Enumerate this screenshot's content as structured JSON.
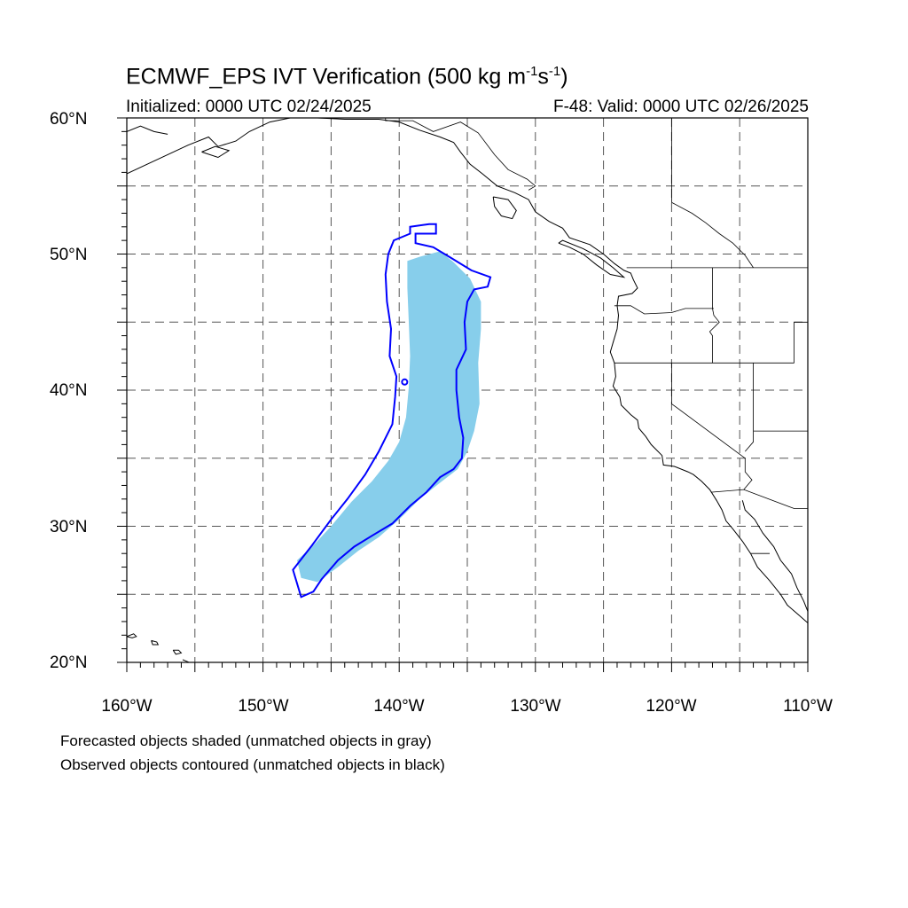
{
  "title": {
    "prefix": "ECMWF_EPS IVT Verification (500 kg m",
    "exp1": "-1",
    "mid": "s",
    "exp2": "-1",
    "suffix": ")"
  },
  "initialized": "Initialized: 0000 UTC 02/24/2025",
  "valid": "F-48: Valid: 0000 UTC 02/26/2025",
  "lat_labels": [
    "60°N",
    "50°N",
    "40°N",
    "30°N",
    "20°N"
  ],
  "lon_labels": [
    "160°W",
    "150°W",
    "140°W",
    "130°W",
    "120°W",
    "110°W"
  ],
  "footnotes": [
    "Forecasted objects shaded (unmatched objects in gray)",
    "Observed objects contoured (unmatched objects in black)"
  ],
  "map": {
    "lon_range": [
      -160,
      -110
    ],
    "lat_range": [
      20,
      60
    ],
    "grid_step_deg": 5,
    "colors": {
      "forecast_fill": "#87ceeb",
      "observed_contour": "#0000ff",
      "coastline": "#000000",
      "grid": "#555555"
    },
    "forecast_object": [
      [
        -138.5,
        49.8
      ],
      [
        -137.0,
        50.2
      ],
      [
        -136.0,
        49.4
      ],
      [
        -134.8,
        48.2
      ],
      [
        -134.0,
        46.5
      ],
      [
        -134.0,
        44.5
      ],
      [
        -134.2,
        42.0
      ],
      [
        -134.1,
        39.0
      ],
      [
        -134.5,
        37.0
      ],
      [
        -135.0,
        35.5
      ],
      [
        -135.7,
        34.2
      ],
      [
        -137.0,
        33.2
      ],
      [
        -138.5,
        32.0
      ],
      [
        -140.0,
        30.5
      ],
      [
        -141.5,
        29.2
      ],
      [
        -143.0,
        28.2
      ],
      [
        -144.5,
        27.0
      ],
      [
        -146.0,
        25.9
      ],
      [
        -147.2,
        26.2
      ],
      [
        -147.5,
        27.5
      ],
      [
        -146.3,
        28.6
      ],
      [
        -145.0,
        30.0
      ],
      [
        -143.5,
        31.8
      ],
      [
        -142.0,
        33.3
      ],
      [
        -140.8,
        34.8
      ],
      [
        -140.0,
        36.2
      ],
      [
        -139.5,
        38.0
      ],
      [
        -139.3,
        40.2
      ],
      [
        -139.2,
        42.5
      ],
      [
        -139.3,
        45.0
      ],
      [
        -139.4,
        47.5
      ],
      [
        -139.4,
        49.5
      ]
    ],
    "observed_object": [
      [
        -137.8,
        52.2
      ],
      [
        -137.3,
        52.2
      ],
      [
        -137.3,
        51.5
      ],
      [
        -138.8,
        51.5
      ],
      [
        -138.8,
        50.8
      ],
      [
        -137.5,
        50.5
      ],
      [
        -136.0,
        49.6
      ],
      [
        -134.7,
        48.8
      ],
      [
        -133.3,
        48.3
      ],
      [
        -133.5,
        47.6
      ],
      [
        -134.5,
        47.4
      ],
      [
        -135.0,
        46.5
      ],
      [
        -135.2,
        45.0
      ],
      [
        -135.1,
        43.0
      ],
      [
        -135.8,
        41.5
      ],
      [
        -135.8,
        40.0
      ],
      [
        -135.6,
        38.0
      ],
      [
        -135.3,
        36.5
      ],
      [
        -135.4,
        35.0
      ],
      [
        -136.0,
        34.2
      ],
      [
        -137.0,
        33.6
      ],
      [
        -138.0,
        32.5
      ],
      [
        -139.2,
        31.5
      ],
      [
        -140.5,
        30.2
      ],
      [
        -142.0,
        29.3
      ],
      [
        -143.3,
        28.5
      ],
      [
        -144.5,
        27.5
      ],
      [
        -145.7,
        26.1
      ],
      [
        -146.3,
        25.2
      ],
      [
        -147.2,
        24.8
      ],
      [
        -147.8,
        26.8
      ],
      [
        -146.4,
        28.6
      ],
      [
        -145.0,
        30.5
      ],
      [
        -143.8,
        32.0
      ],
      [
        -142.5,
        33.8
      ],
      [
        -141.5,
        35.5
      ],
      [
        -140.5,
        37.5
      ],
      [
        -140.3,
        39.5
      ],
      [
        -140.2,
        41.0
      ],
      [
        -140.7,
        42.5
      ],
      [
        -140.6,
        44.5
      ],
      [
        -140.9,
        46.5
      ],
      [
        -141.0,
        48.5
      ],
      [
        -140.8,
        50.0
      ],
      [
        -140.4,
        51.0
      ],
      [
        -139.2,
        51.5
      ],
      [
        -139.2,
        52.0
      ]
    ],
    "observed_dot": [
      -139.6,
      40.6
    ],
    "coastlines": [
      [
        [
          -153.3,
          57.9
        ],
        [
          -152.0,
          58.3
        ],
        [
          -151.0,
          59.0
        ],
        [
          -149.5,
          59.7
        ],
        [
          -148.0,
          60.0
        ]
      ],
      [
        [
          -146.0,
          60.0
        ],
        [
          -144.0,
          59.9
        ],
        [
          -141.5,
          59.9
        ],
        [
          -140.0,
          59.7
        ],
        [
          -138.5,
          59.1
        ],
        [
          -137.0,
          58.6
        ],
        [
          -136.0,
          58.2
        ],
        [
          -135.5,
          57.5
        ],
        [
          -134.8,
          56.6
        ],
        [
          -133.9,
          55.9
        ],
        [
          -132.8,
          55.0
        ],
        [
          -131.5,
          54.5
        ],
        [
          -130.5,
          54.0
        ],
        [
          -130.0,
          53.1
        ],
        [
          -129.0,
          52.4
        ],
        [
          -128.0,
          51.9
        ],
        [
          -127.5,
          51.2
        ],
        [
          -126.0,
          50.7
        ],
        [
          -125.0,
          50.0
        ],
        [
          -124.2,
          49.3
        ],
        [
          -123.5,
          48.8
        ],
        [
          -123.0,
          48.6
        ],
        [
          -122.8,
          48.1
        ],
        [
          -122.5,
          47.5
        ],
        [
          -122.9,
          47.1
        ],
        [
          -123.9,
          46.9
        ],
        [
          -124.0,
          46.2
        ],
        [
          -123.9,
          45.5
        ],
        [
          -124.0,
          44.5
        ],
        [
          -124.3,
          43.5
        ],
        [
          -124.5,
          42.8
        ],
        [
          -124.2,
          42.0
        ],
        [
          -124.1,
          41.0
        ],
        [
          -124.3,
          40.3
        ],
        [
          -123.8,
          39.5
        ],
        [
          -123.7,
          38.9
        ],
        [
          -123.0,
          38.2
        ],
        [
          -122.5,
          37.8
        ],
        [
          -122.4,
          37.2
        ],
        [
          -121.9,
          36.6
        ],
        [
          -121.5,
          36.0
        ],
        [
          -120.7,
          35.2
        ],
        [
          -120.6,
          34.5
        ],
        [
          -119.8,
          34.4
        ],
        [
          -118.8,
          34.0
        ],
        [
          -118.4,
          33.8
        ],
        [
          -117.8,
          33.3
        ],
        [
          -117.2,
          32.7
        ],
        [
          -116.7,
          31.9
        ],
        [
          -116.3,
          31.2
        ],
        [
          -116.0,
          30.4
        ],
        [
          -115.5,
          29.8
        ],
        [
          -114.8,
          28.9
        ],
        [
          -114.2,
          28.0
        ],
        [
          -113.7,
          27.0
        ],
        [
          -112.8,
          26.0
        ],
        [
          -112.0,
          25.0
        ],
        [
          -111.5,
          24.2
        ],
        [
          -110.8,
          23.6
        ],
        [
          -110.0,
          22.9
        ]
      ],
      [
        [
          -128.3,
          50.8
        ],
        [
          -127.5,
          50.5
        ],
        [
          -126.5,
          50.0
        ],
        [
          -125.5,
          49.2
        ],
        [
          -124.5,
          48.5
        ],
        [
          -123.5,
          48.3
        ],
        [
          -124.3,
          49.0
        ],
        [
          -125.2,
          49.7
        ],
        [
          -126.5,
          50.4
        ],
        [
          -128.0,
          51.0
        ],
        [
          -128.3,
          50.8
        ]
      ],
      [
        [
          -133.1,
          54.2
        ],
        [
          -132.0,
          54.0
        ],
        [
          -131.4,
          53.2
        ],
        [
          -131.7,
          52.6
        ],
        [
          -132.5,
          52.8
        ],
        [
          -133.0,
          53.5
        ],
        [
          -133.1,
          54.2
        ]
      ],
      [
        [
          -114.8,
          31.9
        ],
        [
          -114.6,
          31.2
        ],
        [
          -113.9,
          30.5
        ],
        [
          -113.3,
          29.5
        ],
        [
          -112.5,
          28.5
        ],
        [
          -112.0,
          27.5
        ],
        [
          -111.2,
          26.5
        ],
        [
          -110.8,
          25.5
        ],
        [
          -110.3,
          24.5
        ],
        [
          -109.9,
          23.5
        ]
      ],
      [
        [
          -160.0,
          55.9
        ],
        [
          -158.5,
          56.6
        ],
        [
          -157.0,
          57.3
        ],
        [
          -155.5,
          58.0
        ],
        [
          -154.0,
          58.6
        ],
        [
          -153.3,
          57.9
        ]
      ],
      [
        [
          -154.5,
          57.5
        ],
        [
          -153.5,
          57.9
        ],
        [
          -152.5,
          57.6
        ],
        [
          -153.3,
          57.1
        ],
        [
          -154.5,
          57.5
        ]
      ],
      [
        [
          -160.0,
          59.0
        ],
        [
          -159.0,
          59.4
        ],
        [
          -158.0,
          59.0
        ],
        [
          -157.0,
          58.8
        ]
      ],
      [
        [
          -160.0,
          21.9
        ],
        [
          -159.5,
          22.1
        ],
        [
          -159.3,
          21.9
        ],
        [
          -159.6,
          21.8
        ],
        [
          -160.0,
          21.9
        ]
      ],
      [
        [
          -158.2,
          21.6
        ],
        [
          -157.8,
          21.5
        ],
        [
          -157.7,
          21.3
        ],
        [
          -158.1,
          21.3
        ],
        [
          -158.2,
          21.6
        ]
      ],
      [
        [
          -156.6,
          20.9
        ],
        [
          -156.2,
          20.9
        ],
        [
          -156.0,
          20.7
        ],
        [
          -156.4,
          20.6
        ],
        [
          -156.6,
          20.9
        ]
      ],
      [
        [
          -155.9,
          20.2
        ],
        [
          -155.2,
          19.9
        ]
      ]
    ],
    "borders": [
      [
        [
          -141.0,
          60.0
        ],
        [
          -141.0,
          59.8
        ],
        [
          -139.0,
          59.8
        ],
        [
          -137.5,
          59.0
        ],
        [
          -135.5,
          59.7
        ],
        [
          -134.2,
          58.9
        ],
        [
          -133.0,
          57.3
        ],
        [
          -132.0,
          56.2
        ],
        [
          -130.6,
          55.5
        ],
        [
          -130.0,
          55.0
        ],
        [
          -130.5,
          54.7
        ]
      ],
      [
        [
          -123.3,
          49.0
        ],
        [
          -110.0,
          49.0
        ]
      ],
      [
        [
          -117.0,
          49.0
        ],
        [
          -117.0,
          46.0
        ],
        [
          -116.9,
          45.5
        ],
        [
          -116.5,
          45.0
        ],
        [
          -117.2,
          44.3
        ],
        [
          -117.0,
          44.0
        ],
        [
          -117.0,
          42.0
        ]
      ],
      [
        [
          -124.2,
          46.2
        ],
        [
          -123.0,
          46.2
        ],
        [
          -122.0,
          45.6
        ],
        [
          -120.0,
          45.7
        ],
        [
          -119.0,
          46.0
        ],
        [
          -116.9,
          46.0
        ]
      ],
      [
        [
          -124.2,
          42.0
        ],
        [
          -111.0,
          42.0
        ]
      ],
      [
        [
          -120.0,
          42.0
        ],
        [
          -120.0,
          39.0
        ],
        [
          -114.6,
          35.0
        ],
        [
          -114.6,
          34.0
        ],
        [
          -114.1,
          33.4
        ],
        [
          -114.7,
          32.7
        ]
      ],
      [
        [
          -114.0,
          42.0
        ],
        [
          -114.0,
          37.0
        ],
        [
          -114.0,
          36.2
        ],
        [
          -114.6,
          35.5
        ]
      ],
      [
        [
          -114.0,
          37.0
        ],
        [
          -110.0,
          37.0
        ]
      ],
      [
        [
          -111.0,
          45.0
        ],
        [
          -110.0,
          45.0
        ]
      ],
      [
        [
          -111.0,
          45.0
        ],
        [
          -111.0,
          42.0
        ]
      ],
      [
        [
          -117.1,
          32.5
        ],
        [
          -114.7,
          32.7
        ],
        [
          -111.0,
          31.3
        ],
        [
          -110.0,
          31.3
        ]
      ],
      [
        [
          -114.2,
          28.0
        ],
        [
          -112.8,
          28.0
        ]
      ],
      [
        [
          -120.0,
          60.0
        ],
        [
          -120.0,
          53.8
        ],
        [
          -118.5,
          53.0
        ],
        [
          -117.5,
          52.3
        ],
        [
          -116.5,
          51.5
        ],
        [
          -115.5,
          50.8
        ],
        [
          -114.6,
          49.9
        ],
        [
          -114.0,
          49.0
        ]
      ]
    ]
  }
}
